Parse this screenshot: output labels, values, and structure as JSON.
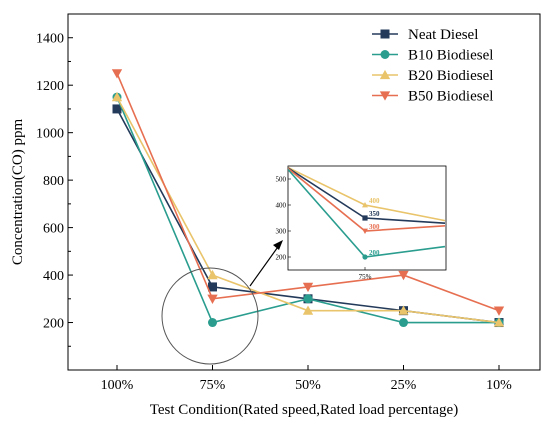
{
  "chart_data": {
    "type": "line",
    "title": "",
    "xlabel": "Test Condition(Rated speed,Rated load percentage)",
    "ylabel": "Concentration(CO) ppm",
    "categories": [
      "100%",
      "75%",
      "50%",
      "25%",
      "10%"
    ],
    "ylim": [
      0,
      1500
    ],
    "yticks": [
      200,
      400,
      600,
      800,
      1000,
      1200,
      1400
    ],
    "grid": false,
    "legend_position": "top-right",
    "series": [
      {
        "name": "Neat Diesel",
        "color": "#233a5a",
        "marker": "square",
        "values": [
          1100,
          350,
          300,
          250,
          200
        ]
      },
      {
        "name": "B10 Biodiesel",
        "color": "#2a9d8f",
        "marker": "circle",
        "values": [
          1150,
          200,
          300,
          200,
          200
        ]
      },
      {
        "name": "B20 Biodiesel",
        "color": "#e9c46a",
        "marker": "triangle-up",
        "values": [
          1150,
          400,
          250,
          250,
          200
        ]
      },
      {
        "name": "B50 Biodiesel",
        "color": "#e76f51",
        "marker": "triangle-down",
        "values": [
          1250,
          300,
          350,
          400,
          250
        ]
      }
    ],
    "inset": {
      "category": "75%",
      "ylim": [
        150,
        550
      ],
      "yticks": [
        200,
        300,
        400,
        500
      ],
      "labels": [
        {
          "series": "B20 Biodiesel",
          "text": "400"
        },
        {
          "series": "Neat Diesel",
          "text": "350"
        },
        {
          "series": "B50 Biodiesel",
          "text": "300"
        },
        {
          "series": "B10 Biodiesel",
          "text": "200"
        }
      ],
      "points_neat": [
        [
          -1,
          550
        ],
        [
          0,
          350
        ],
        [
          1,
          330
        ]
      ],
      "points_b10": [
        [
          -1,
          550
        ],
        [
          0,
          200
        ],
        [
          1,
          240
        ]
      ],
      "points_b20": [
        [
          -1,
          550
        ],
        [
          0,
          400
        ],
        [
          1,
          340
        ]
      ],
      "points_b50": [
        [
          -1,
          550
        ],
        [
          0,
          300
        ],
        [
          1,
          320
        ]
      ]
    }
  }
}
